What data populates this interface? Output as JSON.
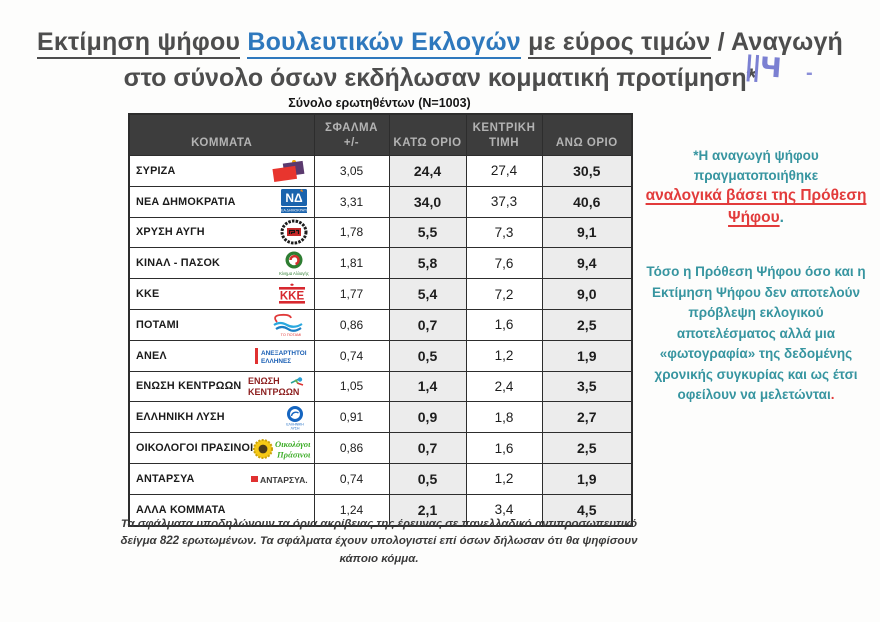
{
  "title": {
    "segment_gray_underlined_1": "Εκτίμηση ψήφου",
    "segment_blue_underlined": "Βουλευτικών Εκλογών",
    "segment_gray_underlined_2": "με εύρος τιμών",
    "segment_gray_plain": "/ Αναγωγή",
    "line2": "στο σύνολο όσων εκδήλωσαν κομματική προτίμηση*"
  },
  "handwritten": {
    "mark": "||Ч",
    "dash": "-"
  },
  "subtitle": "Σύνολο ερωτηθέντων (N=1003)",
  "table": {
    "headers": {
      "party": "ΚΟΜΜΑΤΑ",
      "error_l1": "ΣΦΑΛΜΑ",
      "error_l2": "+/-",
      "lower": "ΚΑΤΩ ΟΡΙΟ",
      "central_l1": "ΚΕΝΤΡΙΚΗ",
      "central_l2": "ΤΙΜΗ",
      "upper": "ΑΝΩ ΟΡΙΟ"
    },
    "rows": [
      {
        "party": "ΣΥΡΙΖΑ",
        "logo": "syriza-logo",
        "error": "3,05",
        "lower": "24,4",
        "central": "27,4",
        "upper": "30,5"
      },
      {
        "party": "ΝΕΑ ΔΗΜΟΚΡΑΤΙΑ",
        "logo": "nea-dimokratia-logo",
        "error": "3,31",
        "lower": "34,0",
        "central": "37,3",
        "upper": "40,6"
      },
      {
        "party": "ΧΡΥΣΗ ΑΥΓΗ",
        "logo": "xrysi-avgi-logo",
        "error": "1,78",
        "lower": "5,5",
        "central": "7,3",
        "upper": "9,1"
      },
      {
        "party": "ΚΙΝΑΛ - ΠΑΣΟΚ",
        "logo": "kinal-pasok-logo",
        "error": "1,81",
        "lower": "5,8",
        "central": "7,6",
        "upper": "9,4"
      },
      {
        "party": "ΚΚΕ",
        "logo": "kke-logo",
        "error": "1,77",
        "lower": "5,4",
        "central": "7,2",
        "upper": "9,0"
      },
      {
        "party": "ΠΟΤΑΜΙ",
        "logo": "potami-logo",
        "error": "0,86",
        "lower": "0,7",
        "central": "1,6",
        "upper": "2,5"
      },
      {
        "party": "ΑΝΕΛ",
        "logo": "anel-logo",
        "error": "0,74",
        "lower": "0,5",
        "central": "1,2",
        "upper": "1,9"
      },
      {
        "party": "ΕΝΩΣΗ ΚΕΝΤΡΩΩΝ",
        "logo": "enosi-kentroon-logo",
        "error": "1,05",
        "lower": "1,4",
        "central": "2,4",
        "upper": "3,5"
      },
      {
        "party": "ΕΛΛΗΝΙΚΗ ΛΥΣΗ",
        "logo": "elliniki-lysi-logo",
        "error": "0,91",
        "lower": "0,9",
        "central": "1,8",
        "upper": "2,7"
      },
      {
        "party": "ΟΙΚΟΛΟΓΟΙ ΠΡΑΣΙΝΟΙ",
        "logo": "oikologoi-prasinoi-logo",
        "error": "0,86",
        "lower": "0,7",
        "central": "1,6",
        "upper": "2,5"
      },
      {
        "party": "ΑΝΤΑΡΣΥΑ",
        "logo": "antarsya-logo",
        "error": "0,74",
        "lower": "0,5",
        "central": "1,2",
        "upper": "1,9"
      },
      {
        "party": "ΑΛΛΑ ΚΟΜΜΑΤΑ",
        "logo": null,
        "error": "1,24",
        "lower": "2,1",
        "central": "3,4",
        "upper": "4,5"
      }
    ]
  },
  "notes": {
    "note1_teal": "*Η αναγωγή ψήφου πραγματοποιήθηκε",
    "note1_red": "αναλογικά βάσει της Πρόθεση Ψήφου",
    "note1_period": ".",
    "note2_body": "Τόσο η Πρόθεση Ψήφου όσο και η Εκτίμηση Ψήφου δεν αποτελούν πρόβλεψη εκλογικού αποτελέσματος αλλά μια «φωτογραφία» της δεδομένης χρονικής συγκυρίας και ως έτσι οφείλουν να μελετώνται",
    "note2_period": "."
  },
  "footnote": "Τα σφάλματα υποδηλώνουν τα όρια ακρίβειας της έρευνας σε πανελλαδικό αντιπροσωπευτικό δείγμα 822 ερωτωμένων. Τα σφάλματα έχουν υπολογιστεί επί όσων δήλωσαν ότι θα ψηφίσουν κάποιο κόμμα.",
  "colors": {
    "title_blue": "#2e78bd",
    "title_gray": "#4d4d4d",
    "note_teal": "#3795a0",
    "note_red": "#e23b3b",
    "header_bg": "#3d3d3d",
    "header_text": "#b3b3b3",
    "shaded_col": "#ececec"
  }
}
